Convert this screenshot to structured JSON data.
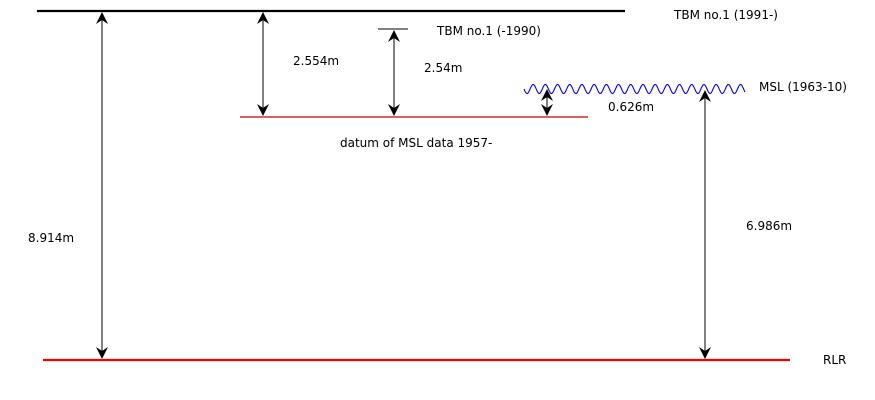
{
  "levels": {
    "tbm_1991": {
      "label": "TBM no.1 (1991-)"
    },
    "tbm_old": {
      "label": "TBM no.1 (-1990)"
    },
    "datum_1957": {
      "label": "datum of MSL data 1957-"
    },
    "msl_1963": {
      "label": "MSL (1963-10)"
    },
    "rlr": {
      "label": "RLR"
    }
  },
  "measurements": {
    "tbm1991_to_rlr": "8.914m",
    "tbm1991_to_datum": "2.554m",
    "tbmold_to_datum": "2.54m",
    "msl_to_datum": "0.626m",
    "msl_to_rlr": "6.986m"
  },
  "colors": {
    "tbm_line": "#000000",
    "datum_line": "#cc0000",
    "msl_wave": "#0000ff",
    "rlr_line": "#ff0000",
    "arrow": "#000000"
  }
}
